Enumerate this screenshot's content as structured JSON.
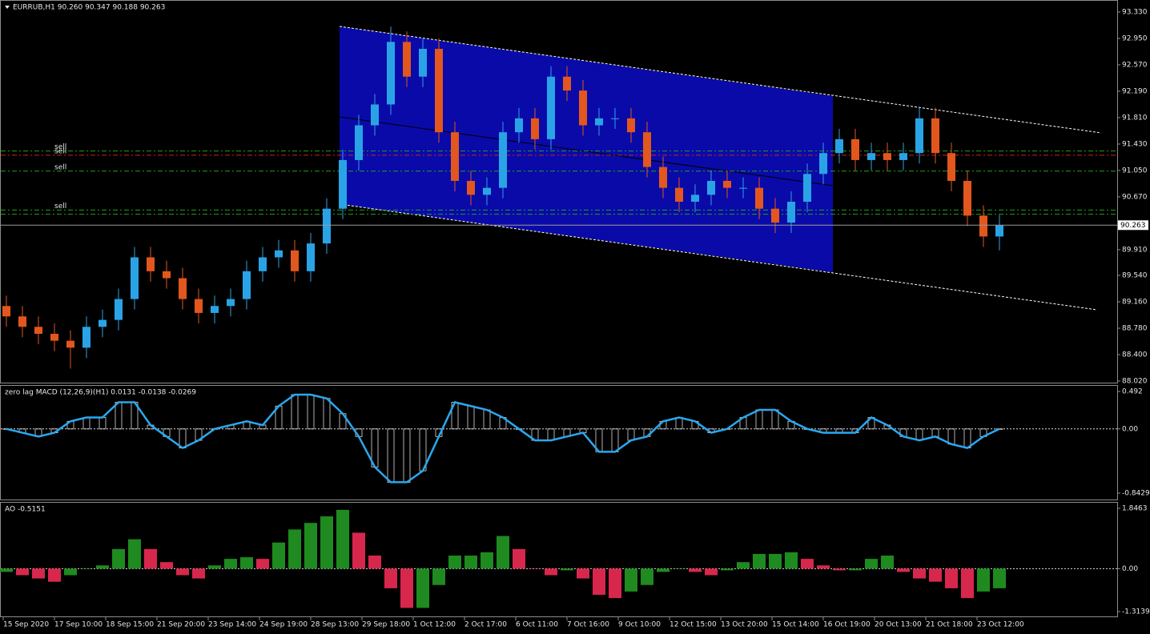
{
  "chart_data": [
    {
      "type": "candlestick",
      "title": "EURRUB,H1  90.260 90.347 90.188 90.263",
      "bull_color": "#2aa3e6",
      "bear_color": "#e2571e",
      "ylim": [
        88.02,
        93.33
      ],
      "yticks": [
        {
          "value": 93.33,
          "label": "93.330"
        },
        {
          "value": 92.95,
          "label": "92.950"
        },
        {
          "value": 92.57,
          "label": "92.570"
        },
        {
          "value": 92.19,
          "label": "92.190"
        },
        {
          "value": 91.81,
          "label": "91.810"
        },
        {
          "value": 91.43,
          "label": "91.430"
        },
        {
          "value": 91.05,
          "label": "91.050"
        },
        {
          "value": 90.67,
          "label": "90.670"
        },
        {
          "value": 89.91,
          "label": "89.910"
        },
        {
          "value": 89.54,
          "label": "89.540"
        },
        {
          "value": 89.16,
          "label": "89.160"
        },
        {
          "value": 88.78,
          "label": "88.780"
        },
        {
          "value": 88.4,
          "label": "88.400"
        },
        {
          "value": 88.02,
          "label": "88.020"
        }
      ],
      "x_labels": [
        "15 Sep 2020",
        "17 Sep 10:00",
        "18 Sep 15:00",
        "21 Sep 20:00",
        "23 Sep 14:00",
        "24 Sep 19:00",
        "28 Sep 13:00",
        "29 Sep 18:00",
        "1 Oct 12:00",
        "2 Oct 17:00",
        "6 Oct 11:00",
        "7 Oct 16:00",
        "9 Oct 10:00",
        "12 Oct 15:00",
        "13 Oct 20:00",
        "15 Oct 14:00",
        "16 Oct 19:00",
        "20 Oct 13:00",
        "21 Oct 18:00",
        "23 Oct 12:00"
      ],
      "open": [
        89.1,
        88.95,
        88.8,
        88.7,
        88.6,
        88.5,
        88.8,
        88.9,
        89.2,
        89.8,
        89.6,
        89.5,
        89.2,
        89.0,
        89.1,
        89.2,
        89.6,
        89.8,
        89.9,
        89.6,
        90.0,
        90.5,
        91.2,
        91.7,
        92.0,
        92.9,
        92.4,
        92.8,
        91.6,
        90.9,
        90.7,
        90.8,
        91.6,
        91.8,
        91.5,
        92.4,
        92.2,
        91.7,
        91.8,
        91.8,
        91.6,
        91.1,
        90.8,
        90.6,
        90.7,
        90.9,
        90.8,
        90.8,
        90.5,
        90.3,
        90.6,
        91.0,
        91.3,
        91.5,
        91.2,
        91.3,
        91.2,
        91.3,
        91.8,
        91.3,
        90.9,
        90.4,
        90.1
      ],
      "high": [
        89.25,
        89.1,
        88.95,
        88.85,
        88.75,
        88.95,
        89.05,
        89.35,
        89.95,
        89.95,
        89.75,
        89.65,
        89.35,
        89.25,
        89.35,
        89.75,
        89.95,
        90.05,
        90.05,
        90.15,
        90.65,
        91.35,
        91.85,
        92.15,
        93.12,
        93.05,
        92.95,
        92.95,
        91.75,
        91.05,
        90.95,
        91.75,
        91.95,
        91.95,
        92.55,
        92.55,
        92.35,
        91.95,
        91.95,
        91.95,
        91.75,
        91.25,
        90.95,
        90.85,
        91.05,
        91.05,
        90.95,
        90.95,
        90.65,
        90.75,
        91.15,
        91.45,
        91.65,
        91.65,
        91.45,
        91.45,
        91.45,
        91.95,
        91.95,
        91.45,
        91.05,
        90.55,
        90.41
      ],
      "low": [
        88.8,
        88.65,
        88.55,
        88.45,
        88.2,
        88.35,
        88.65,
        88.75,
        89.05,
        89.45,
        89.35,
        89.05,
        88.85,
        88.85,
        88.95,
        89.05,
        89.45,
        89.65,
        89.45,
        89.45,
        89.85,
        90.35,
        91.05,
        91.55,
        91.85,
        92.25,
        92.25,
        91.45,
        90.75,
        90.55,
        90.55,
        90.65,
        91.45,
        91.35,
        91.35,
        92.05,
        91.55,
        91.55,
        91.65,
        91.45,
        90.95,
        90.65,
        90.45,
        90.45,
        90.55,
        90.65,
        90.65,
        90.35,
        90.15,
        90.15,
        90.45,
        90.85,
        91.15,
        91.05,
        91.05,
        91.05,
        91.05,
        91.15,
        91.15,
        90.75,
        90.25,
        89.95,
        89.9
      ],
      "close": [
        88.95,
        88.8,
        88.7,
        88.6,
        88.5,
        88.8,
        88.9,
        89.2,
        89.8,
        89.6,
        89.5,
        89.2,
        89.0,
        89.1,
        89.2,
        89.6,
        89.8,
        89.9,
        89.6,
        90.0,
        90.5,
        91.2,
        91.7,
        92.0,
        92.9,
        92.4,
        92.8,
        91.6,
        90.9,
        90.7,
        90.8,
        91.6,
        91.8,
        91.5,
        92.4,
        92.2,
        91.7,
        91.8,
        91.8,
        91.6,
        91.1,
        90.8,
        90.6,
        90.7,
        90.9,
        90.8,
        90.8,
        90.5,
        90.3,
        90.6,
        91.0,
        91.3,
        91.5,
        91.2,
        91.3,
        91.2,
        91.3,
        91.8,
        91.3,
        90.9,
        90.4,
        90.1,
        90.26
      ],
      "levels": [
        {
          "value": 91.33,
          "color": "#1fa31f",
          "label": "sell"
        },
        {
          "value": 91.27,
          "color": "#d42020",
          "label": "sell"
        },
        {
          "value": 91.04,
          "color": "#1fa31f",
          "label": "sell"
        },
        {
          "value": 90.48,
          "color": "#1fa31f",
          "label": "sell"
        },
        {
          "value": 90.42,
          "color": "#1fa31f"
        }
      ],
      "last_price": {
        "value": 90.263,
        "label": "90.263"
      }
    },
    {
      "type": "macd",
      "title": "zero lag MACD (12,26,9)(H1) 0.0131 -0.0138 -0.0269",
      "color": "#dddddd",
      "line_color": "#29a8f0",
      "ylim": [
        -0.8429,
        0.492
      ],
      "yticks": [
        0.492,
        {
          "value": 0,
          "label": "0.00"
        },
        -0.8429
      ],
      "values": [
        0.0,
        -0.05,
        -0.1,
        -0.05,
        0.1,
        0.15,
        0.15,
        0.35,
        0.35,
        0.05,
        -0.1,
        -0.25,
        -0.15,
        0.0,
        0.05,
        0.1,
        0.05,
        0.3,
        0.45,
        0.45,
        0.4,
        0.2,
        -0.1,
        -0.5,
        -0.7,
        -0.7,
        -0.55,
        -0.1,
        0.35,
        0.3,
        0.25,
        0.15,
        0.0,
        -0.15,
        -0.15,
        -0.1,
        -0.05,
        -0.3,
        -0.3,
        -0.15,
        -0.1,
        0.1,
        0.15,
        0.1,
        -0.05,
        0.0,
        0.15,
        0.25,
        0.25,
        0.1,
        0.0,
        -0.05,
        -0.05,
        -0.05,
        0.15,
        0.05,
        -0.1,
        -0.15,
        -0.1,
        -0.2,
        -0.25,
        -0.1,
        0.0
      ]
    },
    {
      "type": "bar",
      "title": "AO -0.5151",
      "up_color": "#1f8a1f",
      "down_color": "#d8274c",
      "ylim": [
        -1.3139,
        1.8463
      ],
      "yticks": [
        1.8463,
        {
          "value": 0,
          "label": "0.00"
        },
        -1.3139
      ],
      "values": [
        -0.1,
        -0.2,
        -0.3,
        -0.4,
        -0.2,
        0.0,
        0.1,
        0.6,
        0.9,
        0.6,
        0.2,
        -0.2,
        -0.3,
        0.1,
        0.3,
        0.35,
        0.3,
        0.8,
        1.2,
        1.4,
        1.6,
        1.8,
        1.1,
        0.4,
        -0.6,
        -1.2,
        -1.2,
        -0.5,
        0.4,
        0.4,
        0.5,
        1.0,
        0.6,
        0.0,
        -0.2,
        -0.05,
        -0.3,
        -0.8,
        -0.9,
        -0.7,
        -0.5,
        -0.1,
        0.0,
        -0.1,
        -0.2,
        -0.05,
        0.2,
        0.45,
        0.45,
        0.5,
        0.3,
        0.1,
        -0.05,
        -0.05,
        0.3,
        0.4,
        -0.1,
        -0.3,
        -0.4,
        -0.6,
        -0.9,
        -0.7,
        -0.6
      ]
    }
  ]
}
